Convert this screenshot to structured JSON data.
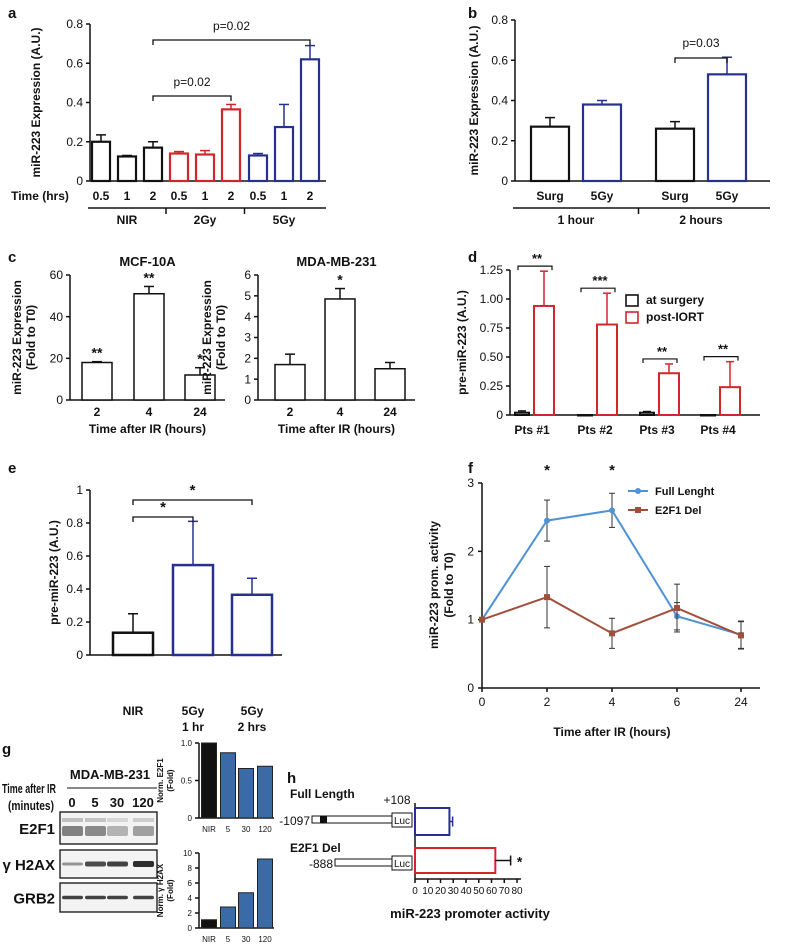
{
  "panel_labels": [
    "a",
    "b",
    "c",
    "d",
    "e",
    "f",
    "g",
    "h"
  ],
  "colors": {
    "black": "#111111",
    "red": "#d3262b",
    "blue": "#27308f",
    "line_blue": "#4f93d6",
    "line_brown": "#a14f3b",
    "bar_blue": "#3b6ba6"
  },
  "chart_data": [
    {
      "id": "a",
      "type": "bar",
      "ylabel": [
        "miR-223 Expression (A.U.)"
      ],
      "ylim": [
        0,
        0.8
      ],
      "yticks": [
        "0",
        "0.2",
        "0.4",
        "0.6",
        "0.8"
      ],
      "xlabel": "Time (hrs)",
      "categories": [
        [
          "0.5"
        ],
        [
          "1"
        ],
        [
          "2"
        ],
        [
          "0.5"
        ],
        [
          "1"
        ],
        [
          "2"
        ],
        [
          "0.5"
        ],
        [
          "1"
        ],
        [
          "2"
        ]
      ],
      "groups": [
        "NIR",
        "2Gy",
        "5Gy"
      ],
      "values": [
        0.2,
        0.125,
        0.17,
        0.14,
        0.135,
        0.365,
        0.13,
        0.275,
        0.62
      ],
      "errors": [
        0.035,
        0.005,
        0.03,
        0.01,
        0.02,
        0.025,
        0.01,
        0.115,
        0.07
      ],
      "color_keys": [
        "black",
        "black",
        "black",
        "red",
        "red",
        "red",
        "blue",
        "blue",
        "blue"
      ],
      "annotations": [
        {
          "text": "p=0.02",
          "from": 2,
          "to": 8
        },
        {
          "text": "p=0.02",
          "from": 2,
          "to": 5
        }
      ]
    },
    {
      "id": "b",
      "type": "bar",
      "ylabel": [
        "miR-223 Expression (A.U.)"
      ],
      "ylim": [
        0,
        0.8
      ],
      "yticks": [
        "0",
        "0.2",
        "0.4",
        "0.6",
        "0.8"
      ],
      "categories": [
        [
          "Surg"
        ],
        [
          "5Gy"
        ],
        [
          "Surg"
        ],
        [
          "5Gy"
        ]
      ],
      "groups": [
        "1 hour",
        "2 hours"
      ],
      "values": [
        0.27,
        0.38,
        0.26,
        0.53
      ],
      "errors": [
        0.045,
        0.02,
        0.035,
        0.085
      ],
      "color_keys": [
        "black",
        "blue",
        "black",
        "blue"
      ],
      "annotations": [
        {
          "text": "p=0.03",
          "from": 2,
          "to": 3
        }
      ]
    },
    {
      "id": "c1",
      "type": "bar",
      "title": "MCF-10A",
      "ylabel": [
        "miR-223 Expression",
        "(Fold to T0)"
      ],
      "ylim": [
        0,
        60
      ],
      "yticks": [
        "0",
        "20",
        "40",
        "60"
      ],
      "xlabel": "Time after IR (hours)",
      "categories": [
        [
          "2"
        ],
        [
          "4"
        ],
        [
          "24"
        ]
      ],
      "values": [
        18,
        51,
        12
      ],
      "errors": [
        0.4,
        3.5,
        3.5
      ],
      "color_keys": [
        "black",
        "black",
        "black"
      ],
      "stars": [
        "**",
        "**",
        "*"
      ]
    },
    {
      "id": "c2",
      "type": "bar",
      "title": "MDA-MB-231",
      "ylabel": [
        "miR-223 Expression",
        "(Fold to T0)"
      ],
      "ylim": [
        0,
        6
      ],
      "yticks": [
        "0",
        "1",
        "2",
        "3",
        "4",
        "5",
        "6"
      ],
      "xlabel": "Time after IR (hours)",
      "categories": [
        [
          "2"
        ],
        [
          "4"
        ],
        [
          "24"
        ]
      ],
      "values": [
        1.7,
        4.85,
        1.5
      ],
      "errors": [
        0.5,
        0.5,
        0.3
      ],
      "color_keys": [
        "black",
        "black",
        "black"
      ],
      "stars": [
        "",
        "*",
        ""
      ]
    },
    {
      "id": "d",
      "type": "bar",
      "ylabel": [
        "pre-miR-223 (A.U.)"
      ],
      "ylim": [
        0,
        1.25
      ],
      "yticks": [
        "0",
        "0.25",
        "0.50",
        "0.75",
        "1.00",
        "1.25"
      ],
      "categories": [
        [
          "Pts #1"
        ],
        [
          "Pts #2"
        ],
        [
          "Pts #3"
        ],
        [
          "Pts #4"
        ]
      ],
      "series": [
        {
          "name": "at surgery",
          "color_key": "black",
          "values": [
            0.02,
            0,
            0.02,
            0
          ],
          "errors": [
            0.015,
            0,
            0.01,
            0
          ]
        },
        {
          "name": "post-IORT",
          "color_key": "red",
          "values": [
            0.94,
            0.78,
            0.36,
            0.24
          ],
          "errors": [
            0.3,
            0.27,
            0.08,
            0.22
          ]
        }
      ],
      "stars": [
        "**",
        "***",
        "**",
        "**"
      ],
      "legend": "top-right"
    },
    {
      "id": "e",
      "type": "bar",
      "ylabel": [
        "pre-miR-223 (A.U.)"
      ],
      "ylim": [
        0,
        1
      ],
      "yticks": [
        "0",
        "0.2",
        "0.4",
        "0.6",
        "0.8",
        "1"
      ],
      "categories": [
        [
          "NIR"
        ],
        [
          "5Gy",
          "1 hr"
        ],
        [
          "5Gy",
          "2 hrs"
        ]
      ],
      "values": [
        0.135,
        0.545,
        0.365
      ],
      "errors": [
        0.115,
        0.265,
        0.1
      ],
      "color_keys": [
        "black",
        "blue",
        "blue"
      ],
      "annotations": [
        {
          "text": "*",
          "from": 0,
          "to": 1
        },
        {
          "text": "*",
          "from": 0,
          "to": 2
        }
      ]
    },
    {
      "id": "f",
      "type": "line",
      "ylabel": [
        "miR-223 prom. activity",
        "(Fold to T0)"
      ],
      "ylim": [
        0,
        3
      ],
      "yticks": [
        "0",
        "1",
        "2",
        "3"
      ],
      "xlabel": "Time after IR (hours)",
      "x": [
        "0",
        "2",
        "4",
        "6",
        "24"
      ],
      "series": [
        {
          "name": "Full Lenght",
          "color_key": "line_blue",
          "values": [
            1,
            2.45,
            2.6,
            1.05,
            0.78
          ],
          "errors": [
            0,
            0.3,
            0.25,
            0.2,
            0.2
          ]
        },
        {
          "name": "E2F1 Del",
          "color_key": "line_brown",
          "values": [
            1,
            1.33,
            0.8,
            1.17,
            0.77
          ],
          "errors": [
            0,
            0.45,
            0.22,
            0.35,
            0.2
          ]
        }
      ],
      "stars": [
        "",
        "*",
        "*",
        "",
        ""
      ],
      "legend": "top-right"
    },
    {
      "id": "g1",
      "type": "bar",
      "ylabel": [
        "Norm. E2F1",
        "(Fold)"
      ],
      "ylim": [
        0,
        1
      ],
      "yticks": [
        "0",
        "0.5",
        "1.0"
      ],
      "categories": [
        [
          "NIR"
        ],
        [
          "5"
        ],
        [
          "30"
        ],
        [
          "120"
        ]
      ],
      "values": [
        1.0,
        0.87,
        0.66,
        0.69
      ],
      "filled": true,
      "color_keys": [
        "black",
        "bar_blue",
        "bar_blue",
        "bar_blue"
      ]
    },
    {
      "id": "g2",
      "type": "bar",
      "ylabel": [
        "Norm. γ H2AX",
        "(Fold)"
      ],
      "ylim": [
        0,
        10
      ],
      "yticks": [
        "0",
        "2",
        "4",
        "6",
        "8",
        "10"
      ],
      "categories": [
        [
          "NIR"
        ],
        [
          "5"
        ],
        [
          "30"
        ],
        [
          "120"
        ]
      ],
      "values": [
        1.1,
        2.8,
        4.7,
        9.2
      ],
      "filled": true,
      "color_keys": [
        "black",
        "bar_blue",
        "bar_blue",
        "bar_blue"
      ]
    },
    {
      "id": "h",
      "type": "bar",
      "orientation": "horizontal",
      "xlabel": "miR-223 promoter activity",
      "xlim": [
        0,
        80
      ],
      "xticks": [
        "0",
        "10",
        "20",
        "30",
        "40",
        "50",
        "60",
        "70",
        "80"
      ],
      "categories": [
        "Full Length",
        "E2F1 Del"
      ],
      "values": [
        27,
        63
      ],
      "errors": [
        2.5,
        12
      ],
      "color_keys": [
        "blue",
        "red"
      ],
      "stars": [
        "",
        "*"
      ],
      "constructs": [
        {
          "start": "-1097",
          "end": "+108",
          "box": "Luc"
        },
        {
          "start": "-888",
          "box": "Luc"
        }
      ]
    }
  ],
  "western_blot": {
    "cell_line": "MDA-MB-231",
    "time_label": [
      "Time after IR",
      "(minutes)"
    ],
    "lanes": [
      "0",
      "5",
      "30",
      "120"
    ],
    "rows": [
      "E2F1",
      "γ H2AX",
      "GRB2"
    ]
  }
}
